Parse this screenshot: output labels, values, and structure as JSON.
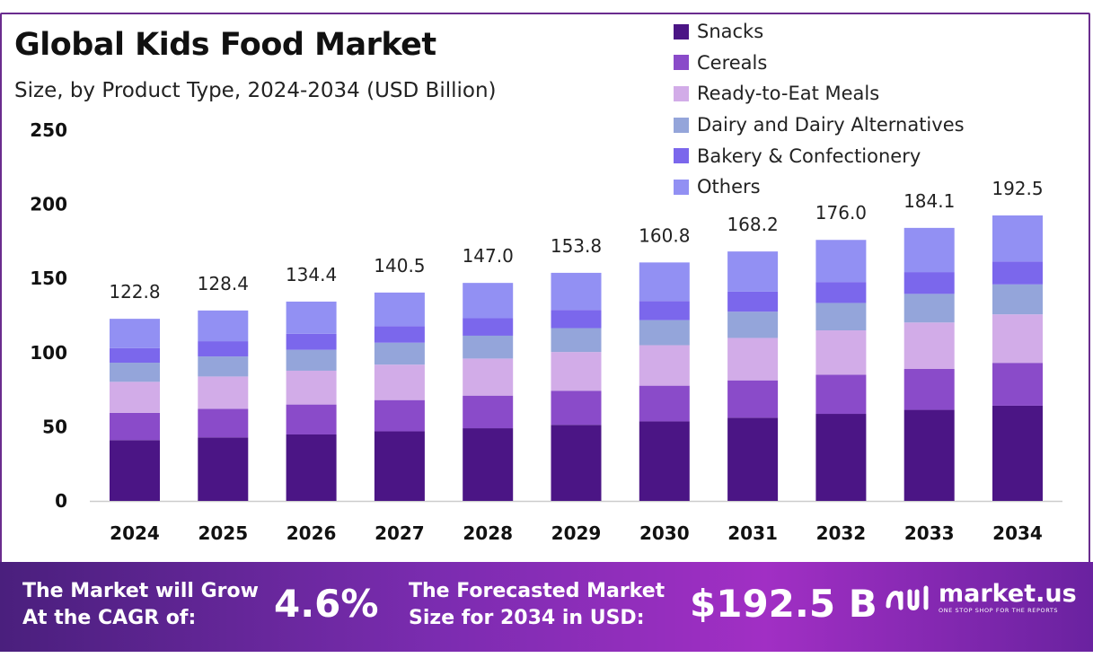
{
  "header": {
    "title": "Global Kids Food Market",
    "subtitle": "Size, by Product Type, 2024-2034 (USD Billion)"
  },
  "chart_data": {
    "type": "bar",
    "stacked": true,
    "categories": [
      "2024",
      "2025",
      "2026",
      "2027",
      "2028",
      "2029",
      "2030",
      "2031",
      "2032",
      "2033",
      "2034"
    ],
    "totals": [
      "122.8",
      "128.4",
      "134.4",
      "140.5",
      "147.0",
      "153.8",
      "160.8",
      "168.2",
      "176.0",
      "184.1",
      "192.5"
    ],
    "series": [
      {
        "name": "Snacks",
        "color": "#4b1585",
        "values": [
          41.0,
          42.8,
          44.8,
          46.9,
          49.0,
          51.3,
          53.6,
          56.1,
          58.7,
          61.4,
          64.2
        ]
      },
      {
        "name": "Cereals",
        "color": "#8a4bc9",
        "values": [
          18.4,
          19.3,
          20.2,
          21.1,
          22.0,
          23.0,
          24.1,
          25.2,
          26.4,
          27.6,
          28.9
        ]
      },
      {
        "name": "Ready-to-Eat Meals",
        "color": "#d2ace8",
        "values": [
          20.9,
          21.8,
          22.8,
          23.9,
          25.0,
          26.1,
          27.3,
          28.6,
          29.9,
          31.3,
          32.7
        ]
      },
      {
        "name": "Dairy and Dairy Alternatives",
        "color": "#94a5da",
        "values": [
          12.9,
          13.5,
          14.1,
          14.8,
          15.4,
          16.1,
          16.9,
          17.7,
          18.5,
          19.3,
          20.2
        ]
      },
      {
        "name": "Bakery & Confectionery",
        "color": "#7b67ec",
        "values": [
          9.8,
          10.3,
          10.8,
          11.2,
          11.8,
          12.3,
          12.9,
          13.5,
          14.1,
          14.7,
          15.4
        ]
      },
      {
        "name": "Others",
        "color": "#9290f3",
        "values": [
          19.8,
          20.7,
          21.7,
          22.6,
          23.8,
          25.0,
          26.0,
          27.1,
          28.4,
          29.8,
          31.1
        ]
      }
    ],
    "y_ticks": [
      "0",
      "50",
      "100",
      "150",
      "200",
      "250"
    ],
    "ylim": [
      0,
      250
    ],
    "grid": false,
    "legend_position": "top-right"
  },
  "banner": {
    "cagr_text_1": "The Market will Grow",
    "cagr_text_2": "At the CAGR of:",
    "cagr_value": "4.6%",
    "forecast_text_1": "The Forecasted Market",
    "forecast_text_2": "Size for 2034 in USD:",
    "forecast_value": "$192.5 B",
    "brand_name": "market.us",
    "brand_tagline": "ONE STOP SHOP FOR THE REPORTS"
  }
}
